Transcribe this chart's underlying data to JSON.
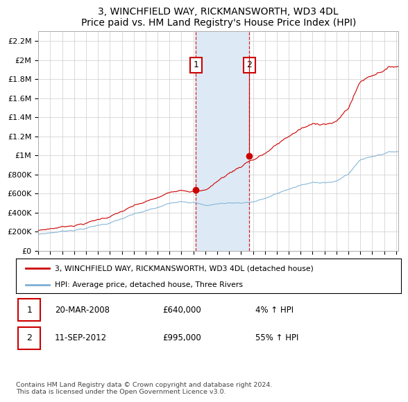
{
  "title": "3, WINCHFIELD WAY, RICKMANSWORTH, WD3 4DL",
  "subtitle": "Price paid vs. HM Land Registry's House Price Index (HPI)",
  "legend_line1": "3, WINCHFIELD WAY, RICKMANSWORTH, WD3 4DL (detached house)",
  "legend_line2": "HPI: Average price, detached house, Three Rivers",
  "transaction1_label": "1",
  "transaction1_date": "20-MAR-2008",
  "transaction1_price": "£640,000",
  "transaction1_hpi": "4% ↑ HPI",
  "transaction2_label": "2",
  "transaction2_date": "11-SEP-2012",
  "transaction2_price": "£995,000",
  "transaction2_hpi": "55% ↑ HPI",
  "footnote": "Contains HM Land Registry data © Crown copyright and database right 2024.\nThis data is licensed under the Open Government Licence v3.0.",
  "hpi_color": "#7bafd4",
  "price_color": "#cc0000",
  "marker_color": "#cc0000",
  "shade_color": "#ddeaf5",
  "ylim": [
    0,
    2300000
  ],
  "yticks": [
    0,
    200000,
    400000,
    600000,
    800000,
    1000000,
    1200000,
    1400000,
    1600000,
    1800000,
    2000000,
    2200000
  ],
  "ytick_labels": [
    "£0",
    "£200K",
    "£400K",
    "£600K",
    "£800K",
    "£1M",
    "£1.2M",
    "£1.4M",
    "£1.6M",
    "£1.8M",
    "£2M",
    "£2.2M"
  ],
  "transaction1_x": 2008.22,
  "transaction1_y": 640000,
  "transaction2_x": 2012.7,
  "transaction2_y": 995000,
  "vline1_x": 2008.22,
  "vline2_x": 2012.7,
  "shade_start": 2008.22,
  "shade_end": 2012.7,
  "xmin": 1995.0,
  "xmax": 2025.2
}
